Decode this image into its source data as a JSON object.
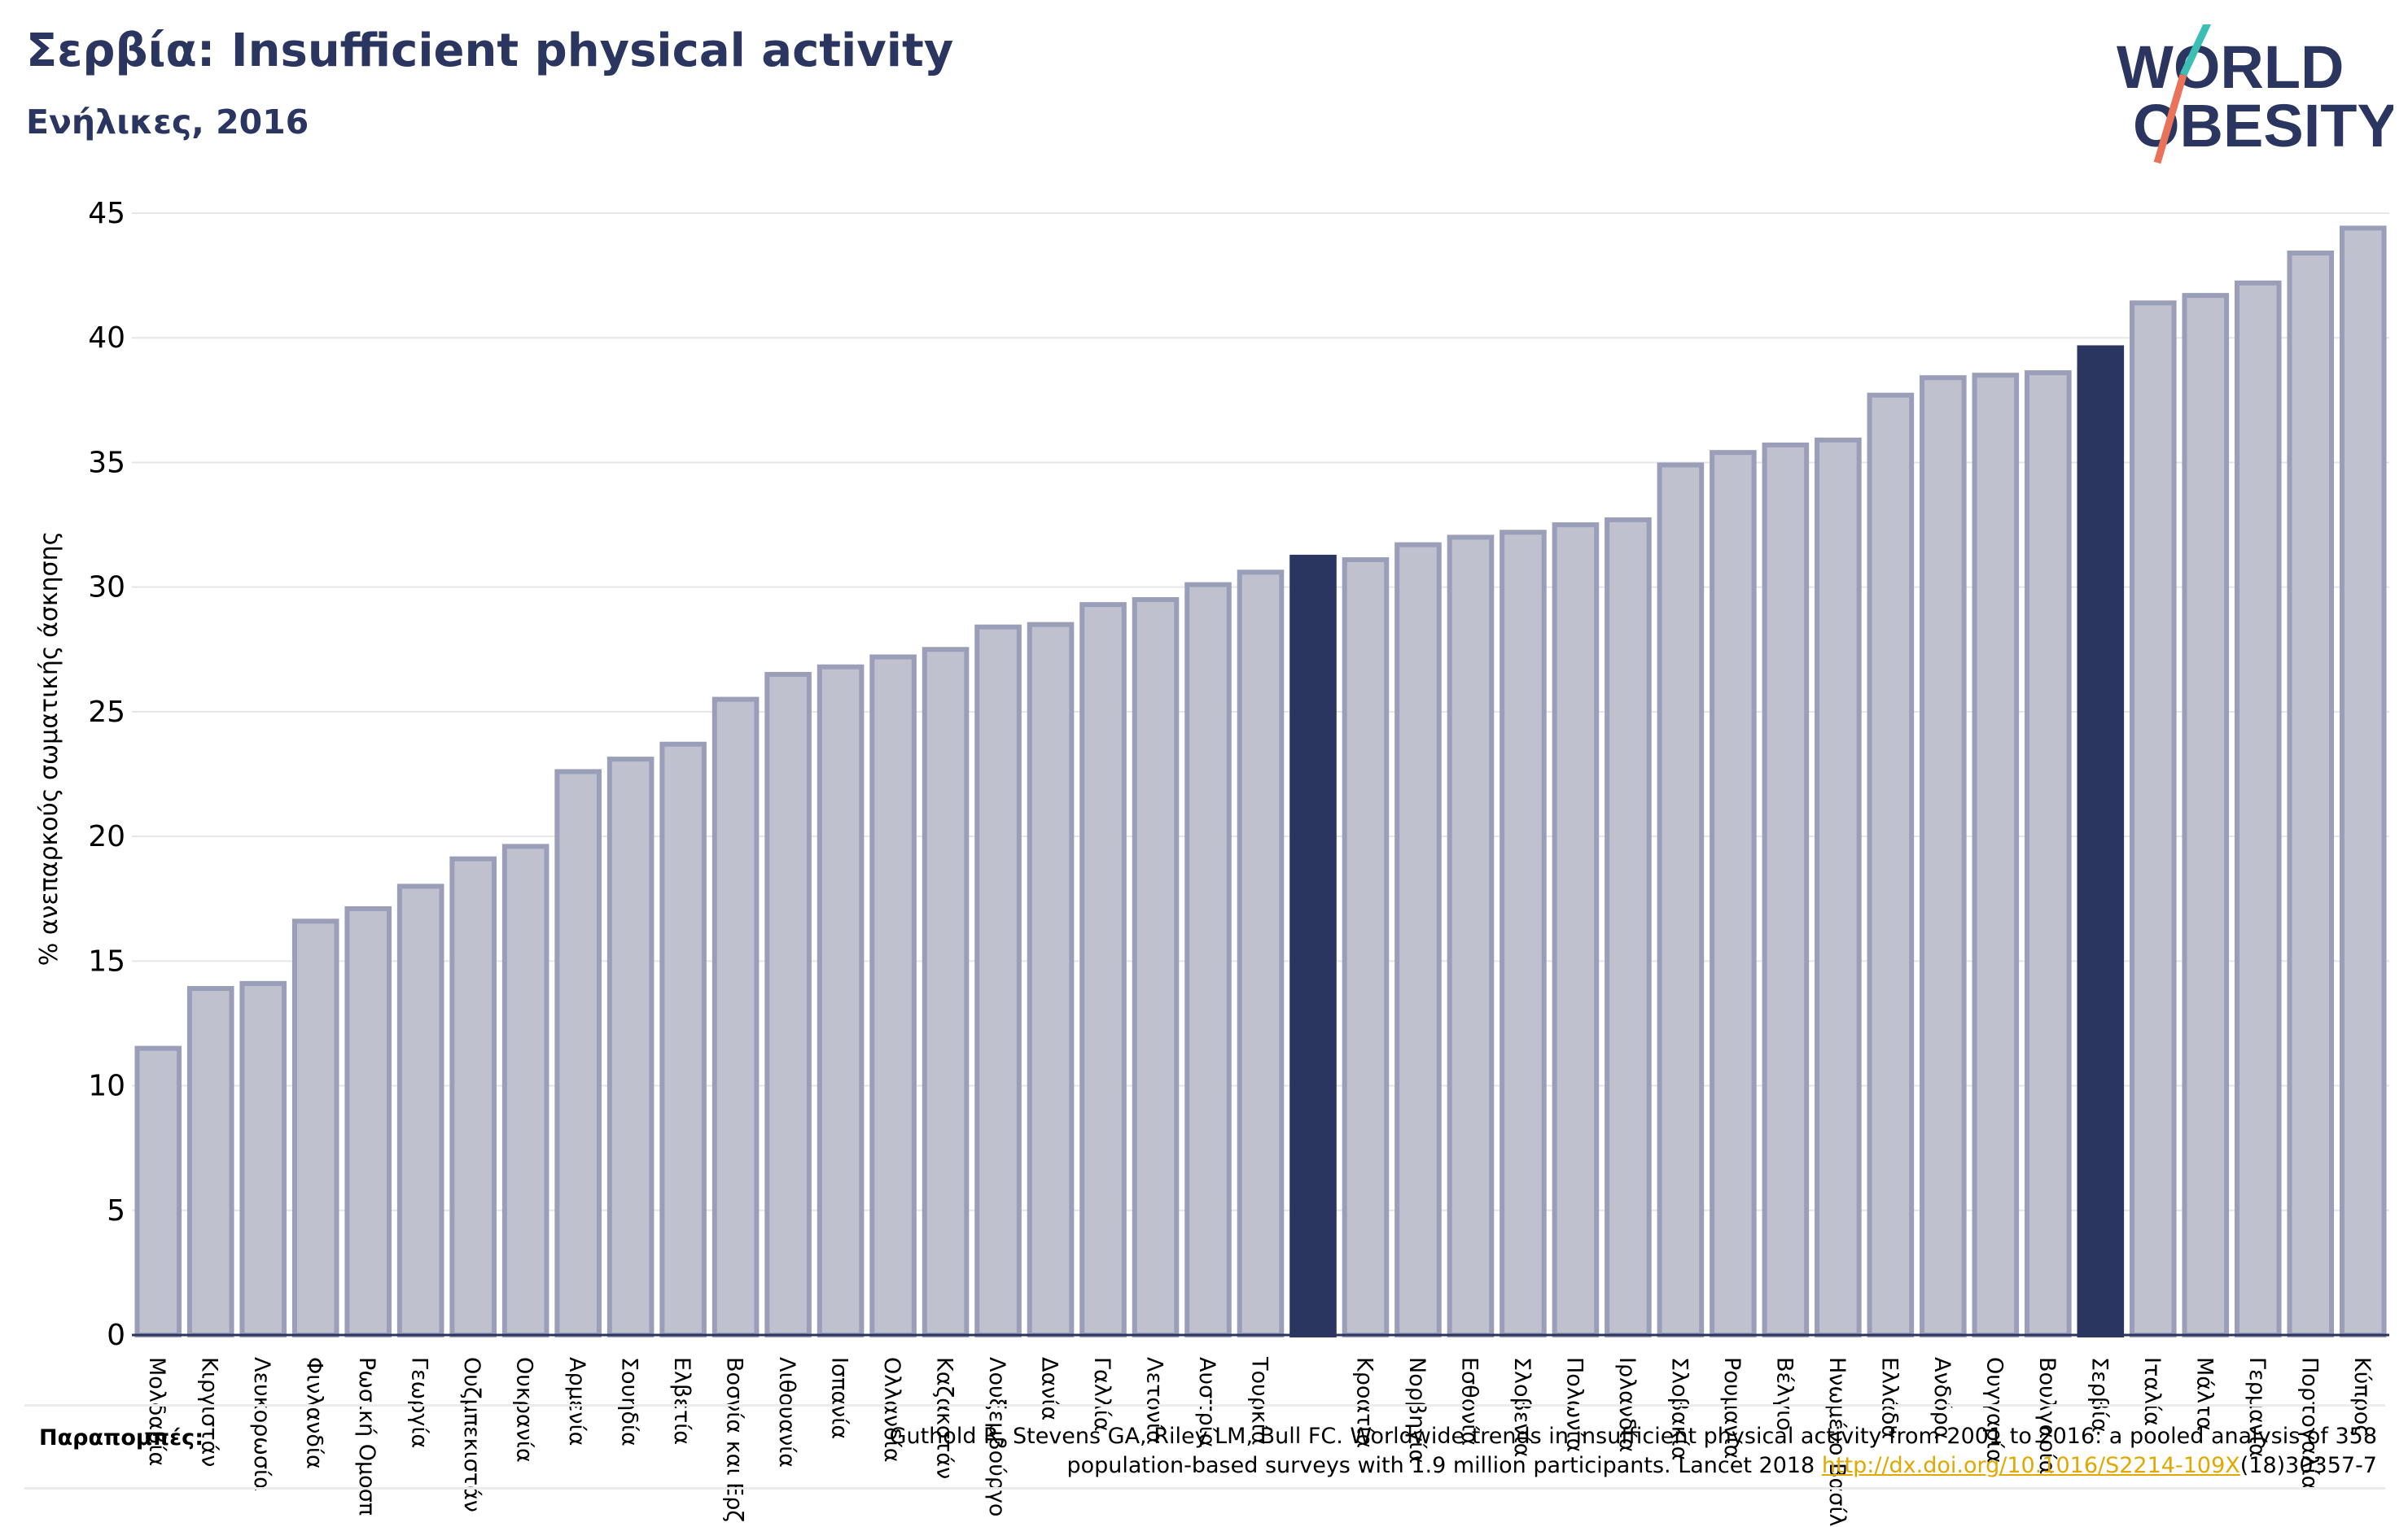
{
  "header": {
    "title": "Σερβία: Insufficient physical activity",
    "subtitle": "Ενήλικες, 2016"
  },
  "logo": {
    "line1": "WORLD",
    "line2": "OBESITY",
    "colors": {
      "text": "#2a3560",
      "slash_top": "#3bbfb4",
      "slash_bottom": "#e8735a"
    }
  },
  "colors": {
    "bar": "#bfc1ce",
    "bar_stroke": "#9a9eb8",
    "highlight": "#2a3560",
    "grid": "#e6e6e6",
    "axis": "#2a3560",
    "text": "#000000"
  },
  "chart_data": {
    "type": "bar",
    "title": "Σερβία: Insufficient physical activity",
    "subtitle": "Ενήλικες, 2016",
    "ylabel": "% ανεπαρκούς σωματικής άσκησης",
    "xlabel": "",
    "ylim": [
      0,
      45
    ],
    "yticks": [
      0,
      5,
      10,
      15,
      20,
      25,
      30,
      35,
      40,
      45
    ],
    "grid": true,
    "categories": [
      "Μολδαβία",
      "Κιργιστάν",
      "Λευκορωσία",
      "Φινλανδία",
      "Ρωσική Ομοσπ",
      "Γεωργία",
      "Ουζμπεκιστάν",
      "Ουκρανία",
      "Αρμενία",
      "Σουηδία",
      "Ελβετία",
      "Βοσνία και Ερζ",
      "Λιθουανία",
      "Ισπανία",
      "Ολλανδία",
      "Καζακστάν",
      "Λουξεμβούργο",
      "Δανία",
      "Γαλλία",
      "Λετονία",
      "Αυστρία",
      "Τουρκία",
      "",
      "Κροατία",
      "Νορβηγία",
      "Εσθονία",
      "Σλοβενία",
      "Πολωνία",
      "Ιρλανδία",
      "Σλοβακία",
      "Ρουμανία",
      "Βέλγιο",
      "Ηνωμένο Βασίλ",
      "Ελλάδα",
      "Ανδόρα",
      "Ουγγαρία",
      "Βουλγαρία",
      "Σερβία",
      "Ιταλία",
      "Μάλτα",
      "Γερμανία",
      "Πορτογαλία",
      "Κύπρος"
    ],
    "values": [
      11.5,
      13.9,
      14.1,
      16.6,
      17.1,
      18.0,
      19.1,
      19.6,
      22.6,
      23.1,
      23.7,
      25.5,
      26.5,
      26.8,
      27.2,
      27.5,
      28.4,
      28.5,
      29.3,
      29.5,
      30.1,
      30.6,
      31.2,
      31.1,
      31.7,
      32.0,
      32.2,
      32.5,
      32.7,
      34.9,
      35.4,
      35.7,
      35.9,
      37.7,
      38.4,
      38.5,
      38.6,
      39.6,
      41.4,
      41.7,
      42.2,
      43.4,
      44.4
    ],
    "highlighted": [
      "",
      "Σερβία"
    ]
  },
  "references": {
    "label": "Παραπομπές:",
    "line1": "Guthold R, Stevens GA, Riley LM, Bull FC. Worldwide trends in insufficient physical activity from 2001 to 2016: a pooled analysis of 358",
    "line2_before": "population-based surveys with 1.9 million participants. Lancet 2018 ",
    "link": "http://dx.doi.org/10.1016/S2214-109X",
    "line2_after": "(18)30357-7"
  }
}
